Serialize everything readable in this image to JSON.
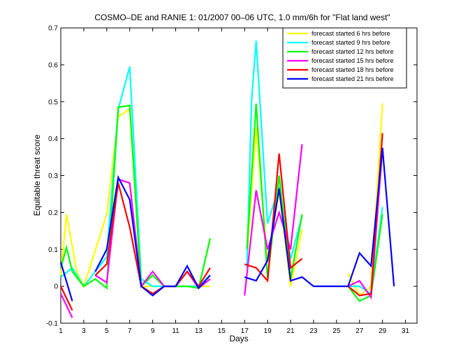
{
  "chart_data": {
    "type": "line",
    "title": "COSMO–DE and RANIE 1: 01/2007 00–06 UTC, 1.0 mm/6h for \"Flat land west\"",
    "xlabel": "Days",
    "ylabel": "Equitable threat score",
    "xlim": [
      1,
      32
    ],
    "ylim": [
      -0.1,
      0.7
    ],
    "xticks": [
      1,
      3,
      5,
      7,
      9,
      11,
      13,
      15,
      17,
      19,
      21,
      23,
      25,
      27,
      29,
      31
    ],
    "yticks": [
      -0.1,
      0,
      0.1,
      0.2,
      0.3,
      0.4,
      0.5,
      0.6,
      0.7
    ],
    "grid": false,
    "legend_position": "top-right",
    "series": [
      {
        "name": "forecast started 6 hrs before",
        "color": "#ffff00",
        "points": [
          [
            1,
            0.03
          ],
          [
            1.5,
            0.195
          ],
          [
            2.4,
            0.04
          ],
          [
            3,
            0.0
          ],
          [
            5,
            0.195
          ],
          [
            6,
            0.46
          ],
          [
            7,
            0.48
          ],
          [
            8,
            0.0
          ],
          [
            9,
            0.0
          ],
          [
            10,
            0.0
          ],
          [
            11,
            0.0
          ],
          [
            12,
            0.0
          ],
          [
            13,
            0.0
          ],
          [
            14,
            0.0
          ],
          [
            null,
            null
          ],
          [
            17.2,
            0.07
          ],
          [
            18,
            0.43
          ],
          [
            19,
            0.07
          ],
          [
            20,
            0.255
          ],
          [
            21,
            0.0
          ],
          [
            22,
            0.155
          ],
          [
            null,
            null
          ],
          [
            26,
            0.035
          ],
          [
            27,
            -0.025
          ],
          [
            28,
            0.0
          ],
          [
            29,
            0.495
          ]
        ]
      },
      {
        "name": "forecast started 9 hrs before",
        "color": "#00ffff",
        "points": [
          [
            1,
            0.025
          ],
          [
            2,
            0.05
          ],
          [
            3,
            0.0
          ],
          [
            4,
            0.04
          ],
          [
            5,
            0.08
          ],
          [
            6,
            0.48
          ],
          [
            7,
            0.595
          ],
          [
            8,
            0.02
          ],
          [
            9,
            0.0
          ],
          [
            10,
            0.0
          ],
          [
            11,
            0.0
          ],
          [
            12,
            0.0
          ],
          [
            13,
            0.0
          ],
          [
            14,
            0.03
          ],
          [
            null,
            null
          ],
          [
            17.2,
            0.05
          ],
          [
            17.6,
            0.5
          ],
          [
            18,
            0.665
          ],
          [
            19,
            0.17
          ],
          [
            20,
            0.27
          ],
          [
            21,
            0.075
          ],
          [
            22,
            0.19
          ],
          [
            null,
            null
          ],
          [
            26,
            0.0
          ],
          [
            27,
            0.0
          ],
          [
            28,
            -0.02
          ],
          [
            29,
            0.215
          ]
        ]
      },
      {
        "name": "forecast started 12 hrs before",
        "color": "#00ff00",
        "points": [
          [
            1,
            0.05
          ],
          [
            1.5,
            0.105
          ],
          [
            2,
            0.04
          ],
          [
            3,
            0.0
          ],
          [
            4,
            0.02
          ],
          [
            5,
            -0.005
          ],
          [
            6,
            0.485
          ],
          [
            7,
            0.49
          ],
          [
            8,
            0.0
          ],
          [
            9,
            0.03
          ],
          [
            10,
            0.0
          ],
          [
            11,
            0.0
          ],
          [
            12,
            0.0
          ],
          [
            13,
            -0.005
          ],
          [
            14,
            0.13
          ],
          [
            null,
            null
          ],
          [
            17.2,
            0.1
          ],
          [
            18,
            0.495
          ],
          [
            19,
            0.02
          ],
          [
            20,
            0.3
          ],
          [
            21,
            0.02
          ],
          [
            22,
            0.195
          ],
          [
            null,
            null
          ],
          [
            26,
            0.0
          ],
          [
            27,
            -0.04
          ],
          [
            28,
            -0.025
          ],
          [
            29,
            0.195
          ]
        ]
      },
      {
        "name": "forecast started 15 hrs before",
        "color": "#ff00ff",
        "points": [
          [
            1,
            -0.02
          ],
          [
            2,
            -0.085
          ],
          [
            null,
            null
          ],
          [
            4,
            0.03
          ],
          [
            5,
            0.01
          ],
          [
            6,
            0.29
          ],
          [
            7,
            0.28
          ],
          [
            8,
            0.0
          ],
          [
            9,
            0.04
          ],
          [
            10,
            0.0
          ],
          [
            11,
            0.0
          ],
          [
            12,
            0.04
          ],
          [
            13,
            -0.005
          ],
          [
            14,
            0.02
          ],
          [
            null,
            null
          ],
          [
            17,
            -0.025
          ],
          [
            18,
            0.26
          ],
          [
            19,
            0.1
          ],
          [
            20,
            0.2
          ],
          [
            21,
            0.1
          ],
          [
            22,
            0.385
          ],
          [
            null,
            null
          ],
          [
            26,
            0.0
          ],
          [
            27,
            0.015
          ],
          [
            28,
            -0.03
          ],
          [
            29,
            0.375
          ]
        ]
      },
      {
        "name": "forecast started 18 hrs before",
        "color": "#ff0000",
        "points": [
          [
            1,
            0.0
          ],
          [
            2,
            -0.065
          ],
          [
            null,
            null
          ],
          [
            4,
            0.03
          ],
          [
            5,
            0.06
          ],
          [
            6,
            0.28
          ],
          [
            7,
            0.16
          ],
          [
            8,
            0.0
          ],
          [
            9,
            -0.02
          ],
          [
            10,
            0.0
          ],
          [
            11,
            0.0
          ],
          [
            12,
            0.04
          ],
          [
            13,
            0.0
          ],
          [
            14,
            0.05
          ],
          [
            null,
            null
          ],
          [
            17,
            0.06
          ],
          [
            18,
            0.05
          ],
          [
            19,
            0.015
          ],
          [
            20,
            0.36
          ],
          [
            21,
            0.05
          ],
          [
            22,
            0.075
          ],
          [
            null,
            null
          ],
          [
            26,
            0.0
          ],
          [
            27,
            -0.025
          ],
          [
            28,
            -0.02
          ],
          [
            29,
            0.415
          ]
        ]
      },
      {
        "name": "forecast started 21 hrs before",
        "color": "#0000ff",
        "points": [
          [
            1,
            0.065
          ],
          [
            2,
            -0.04
          ],
          [
            null,
            null
          ],
          [
            4,
            0.04
          ],
          [
            5,
            0.1
          ],
          [
            6,
            0.295
          ],
          [
            7,
            0.235
          ],
          [
            8,
            0.0
          ],
          [
            9,
            -0.025
          ],
          [
            10,
            0.0
          ],
          [
            11,
            0.0
          ],
          [
            12,
            0.055
          ],
          [
            13,
            -0.005
          ],
          [
            14,
            0.03
          ],
          [
            null,
            null
          ],
          [
            17,
            0.025
          ],
          [
            18,
            0.015
          ],
          [
            19,
            0.07
          ],
          [
            20,
            0.265
          ],
          [
            21,
            0.015
          ],
          [
            22,
            0.025
          ],
          [
            23,
            0.0
          ],
          [
            24,
            0.0
          ],
          [
            25,
            0.0
          ],
          [
            26,
            0.0
          ],
          [
            27,
            0.09
          ],
          [
            28,
            0.055
          ],
          [
            29,
            0.375
          ],
          [
            30,
            0.0
          ]
        ]
      }
    ]
  }
}
